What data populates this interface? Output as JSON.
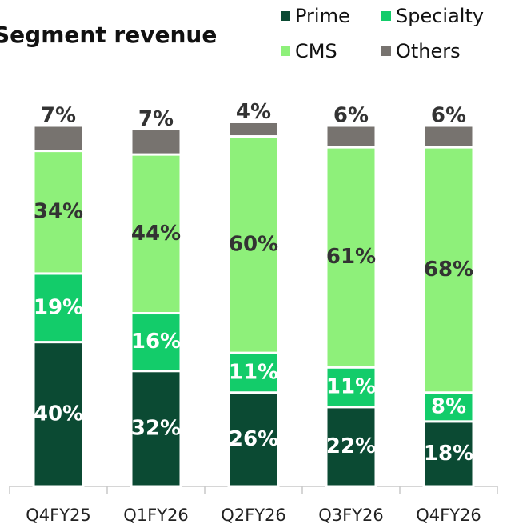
{
  "chart_data": {
    "type": "stacked_bar",
    "title": "Segment revenue",
    "categories": [
      "Q4FY25",
      "Q1FY26",
      "Q2FY26",
      "Q3FY26",
      "Q4FY26"
    ],
    "series": [
      {
        "name": "Prime",
        "color": "#0b4a33",
        "values": [
          40,
          32,
          26,
          22,
          18
        ],
        "value_labels": [
          "40%",
          "32%",
          "26%",
          "22%",
          "18%"
        ]
      },
      {
        "name": "Specialty",
        "color": "#13cc6a",
        "values": [
          19,
          16,
          11,
          11,
          8
        ],
        "value_labels": [
          "19%",
          "16%",
          "11%",
          "11%",
          "8%"
        ]
      },
      {
        "name": "CMS",
        "color": "#8ef07a",
        "values": [
          34,
          44,
          60,
          61,
          68
        ],
        "value_labels": [
          "34%",
          "44%",
          "60%",
          "61%",
          "68%"
        ]
      },
      {
        "name": "Others",
        "color": "#77736f",
        "values": [
          7,
          7,
          4,
          6,
          6
        ],
        "value_labels": [
          "7%",
          "7%",
          "4%",
          "6%",
          "6%"
        ]
      }
    ],
    "legend": "top-right"
  }
}
